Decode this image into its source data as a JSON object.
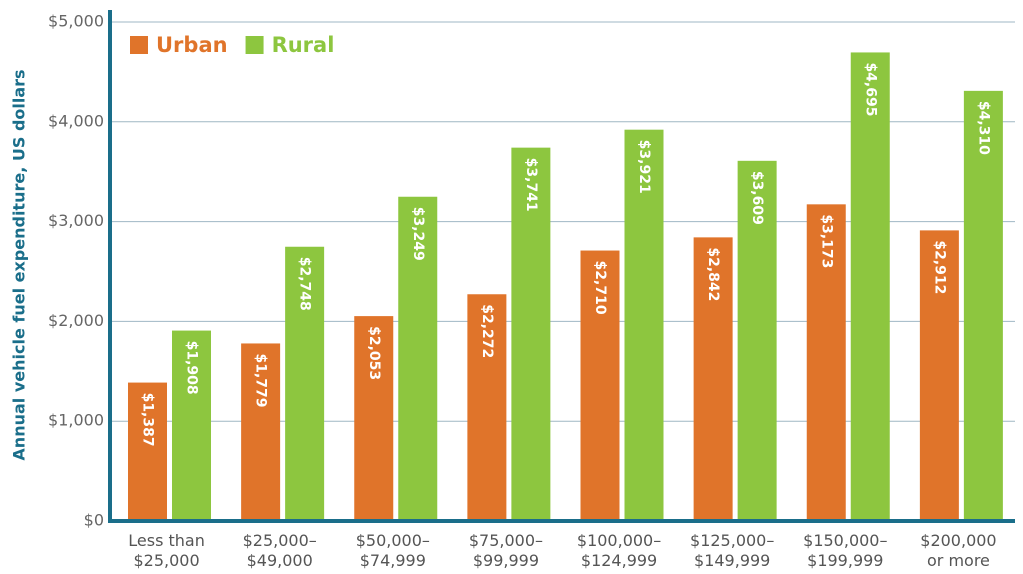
{
  "chart_data": {
    "type": "bar",
    "y_label": "Annual vehicle fuel expenditure, US dollars",
    "categories": [
      "Less than\n$25,000",
      "$25,000–\n$49,000",
      "$50,000–\n$74,999",
      "$75,000–\n$99,999",
      "$100,000–\n$124,999",
      "$125,000–\n$149,999",
      "$150,000–\n$199,999",
      "$200,000\nor more"
    ],
    "series": [
      {
        "name": "Urban",
        "color": "#e0742a",
        "values": [
          1387,
          1779,
          2053,
          2272,
          2710,
          2842,
          3173,
          2912
        ],
        "value_labels": [
          "$1,387",
          "$1,779",
          "$2,053",
          "$2,272",
          "$2,710",
          "$2,842",
          "$3,173",
          "$2,912"
        ]
      },
      {
        "name": "Rural",
        "color": "#8dc63f",
        "values": [
          1908,
          2748,
          3249,
          3741,
          3921,
          3609,
          4695,
          4310
        ],
        "value_labels": [
          "$1,908",
          "$2,748",
          "$3,249",
          "$3,741",
          "$3,921",
          "$3,609",
          "$4,695",
          "$4,310"
        ]
      }
    ],
    "ylim": [
      0,
      5000
    ],
    "yticks": [
      {
        "value": 0,
        "label": "$0"
      },
      {
        "value": 1000,
        "label": "$1,000"
      },
      {
        "value": 2000,
        "label": "$2,000"
      },
      {
        "value": 3000,
        "label": "$3,000"
      },
      {
        "value": 4000,
        "label": "$4,000"
      },
      {
        "value": 5000,
        "label": "$5,000"
      }
    ],
    "grid": true,
    "legend": "top-left"
  }
}
